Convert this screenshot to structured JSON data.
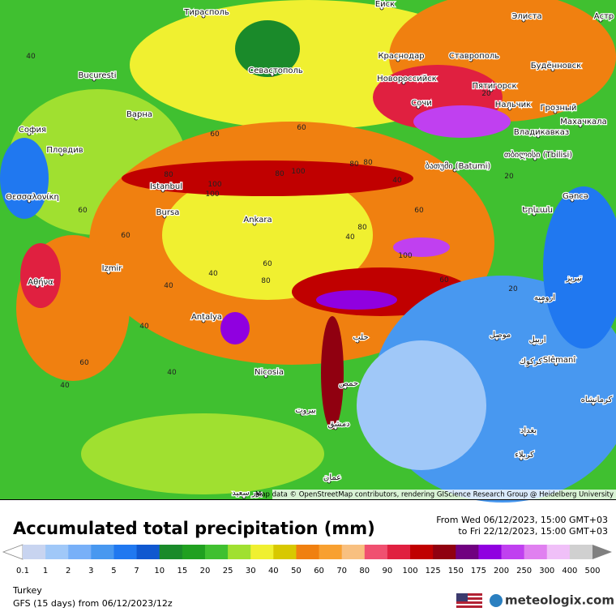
{
  "map": {
    "attribution": "Map data © OpenStreetMap contributors, rendering GIScience Research Group @ Heidelberg University",
    "cities": [
      "Тирасполь",
      "Bucuresti",
      "Севастополь",
      "Краснодар",
      "Ставрополь",
      "Элиста",
      "Новороссийск",
      "Сочи",
      "Пятигорск",
      "Нальчик",
      "Будённовск",
      "Грозный",
      "Владикавказ",
      "Махачкала",
      "София",
      "Пловдив",
      "Варна",
      "Θεσσαλονίκη",
      "Istanbul",
      "Bursa",
      "Ankara",
      "Izmir",
      "Αθήνα",
      "Antalya",
      "Nicosia",
      "ბათუმი (Batumi)",
      "თბილისი (Tbilisi)",
      "Gəncə",
      "Երևան",
      "تبريز",
      "ارومیه",
      "حلب",
      "موصل",
      "اربيل",
      "كركوك",
      "Slêmanî",
      "حمص",
      "بيروت",
      "دمشق",
      "كرمانشاه",
      "بغداد",
      "كربلاء",
      "عمان",
      "بور سعيد",
      "Еиск",
      "Астр"
    ],
    "contour_labels": [
      40,
      60,
      80,
      100,
      40,
      60,
      80,
      40,
      60,
      80,
      100,
      60,
      40,
      80,
      60,
      40,
      60,
      40,
      80,
      20,
      20,
      20,
      40,
      60,
      100,
      40,
      60,
      80,
      100
    ]
  },
  "footer": {
    "title": "Accumulated total precipitation (mm)",
    "from": "From Wed 06/12/2023, 15:00 GMT+03",
    "to": "to Fri 22/12/2023, 15:00 GMT+03",
    "region": "Turkey",
    "model": "GFS (15 days) from 06/12/2023/12z",
    "brand": "meteologix.com"
  },
  "legend": {
    "ticks": [
      0.1,
      1,
      2,
      3,
      5,
      7,
      10,
      15,
      20,
      25,
      30,
      40,
      50,
      60,
      70,
      80,
      90,
      100,
      125,
      150,
      175,
      200,
      250,
      300,
      400,
      500
    ],
    "colors": [
      "#c8d4f0",
      "#a0c8f8",
      "#78b0f8",
      "#4898f0",
      "#2078f0",
      "#1058d0",
      "#1a8a2a",
      "#20a020",
      "#40c030",
      "#a0e030",
      "#f0f030",
      "#d8c800",
      "#f08010",
      "#f8a030",
      "#f8c080",
      "#f05070",
      "#e02040",
      "#c00000",
      "#900010",
      "#700080",
      "#9000e0",
      "#c040f0",
      "#e080f0",
      "#f0c0f8",
      "#d0d0d0"
    ],
    "under_color": "#ffffff",
    "over_color": "#808080"
  }
}
